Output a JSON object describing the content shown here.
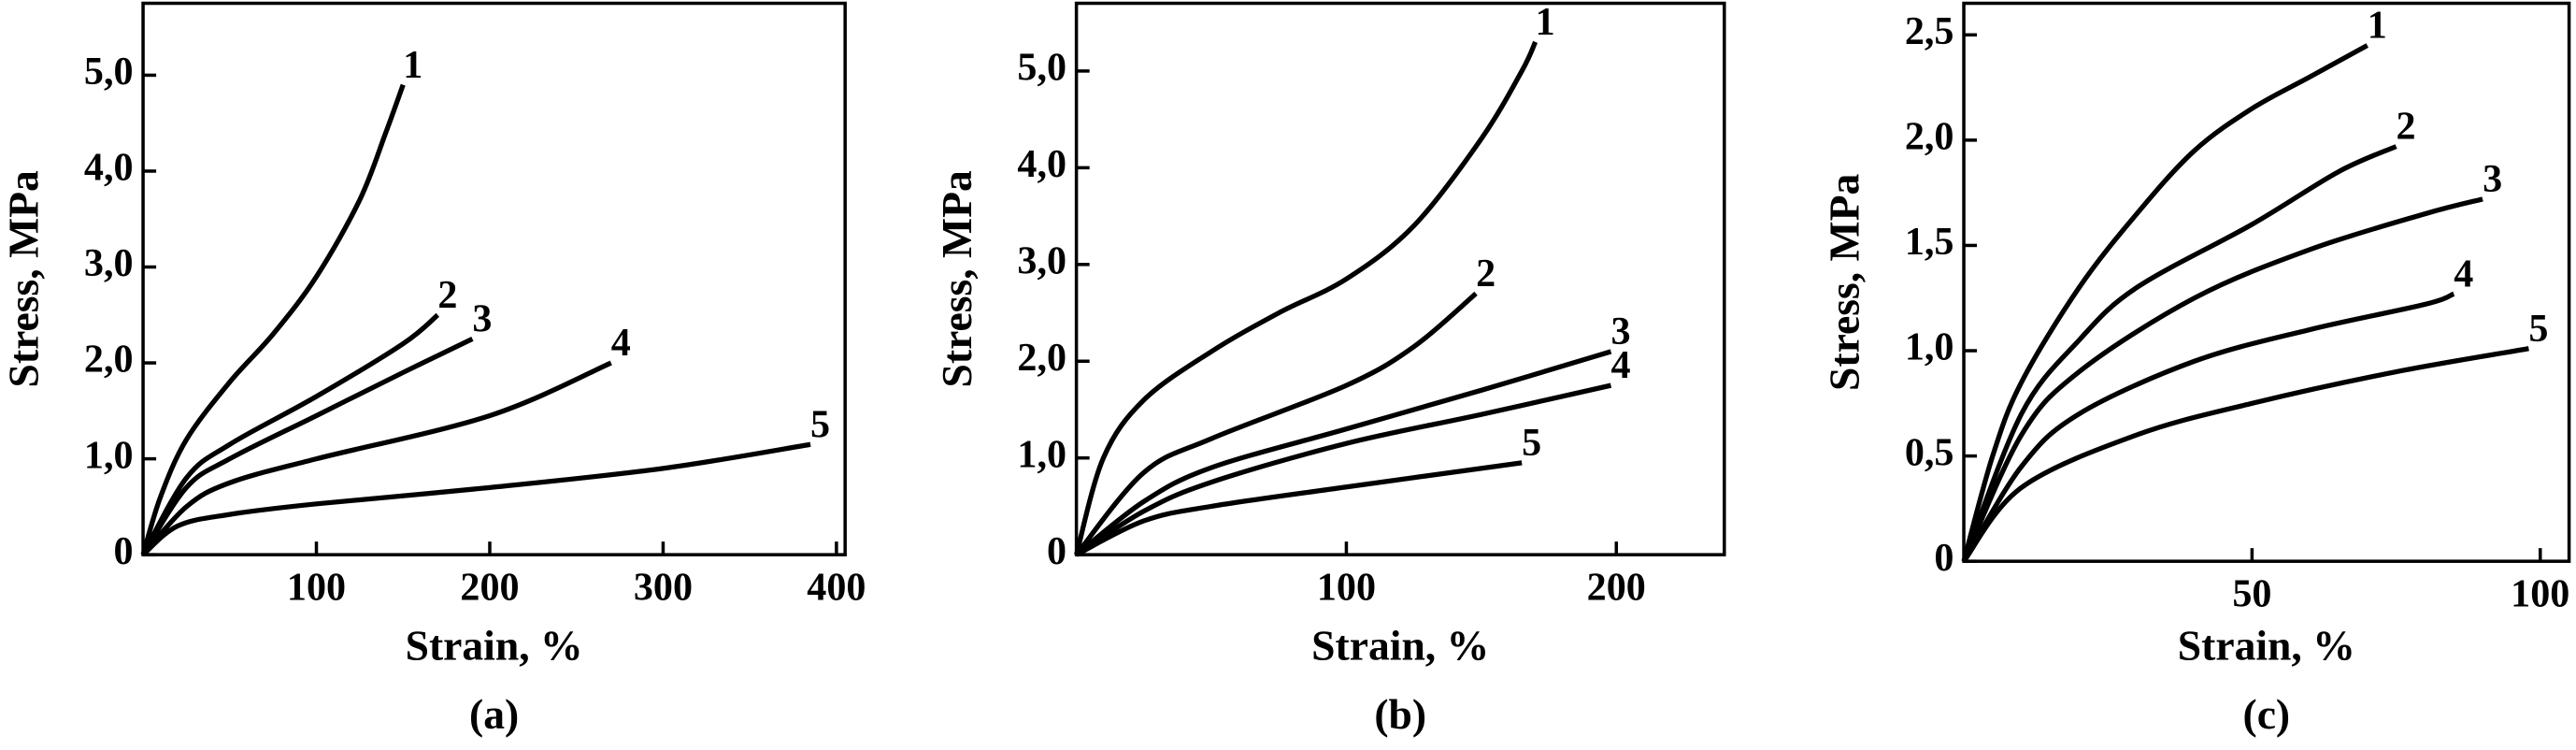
{
  "chart_data": [
    {
      "type": "line",
      "label": "(a)",
      "xlabel": "Strain, %",
      "ylabel": "Stress, MPa",
      "xlim": [
        0,
        405
      ],
      "ylim": [
        0,
        5.75
      ],
      "xticks": [
        100,
        200,
        300,
        400
      ],
      "yticks": [
        0,
        {
          "value": 1,
          "label": "1,0"
        },
        {
          "value": 2,
          "label": "2,0"
        },
        {
          "value": 3,
          "label": "3,0"
        },
        {
          "value": 4,
          "label": "4,0"
        },
        {
          "value": 5,
          "label": "5,0"
        }
      ],
      "series": [
        {
          "name": "1",
          "color": "#000000",
          "x": [
            0,
            10,
            25,
            50,
            75,
            100,
            125,
            140,
            150
          ],
          "values": [
            0,
            0.6,
            1.2,
            1.8,
            2.3,
            2.9,
            3.7,
            4.4,
            4.9
          ]
        },
        {
          "name": "2",
          "color": "#000000",
          "x": [
            0,
            25,
            50,
            100,
            150,
            170
          ],
          "values": [
            0,
            0.8,
            1.15,
            1.65,
            2.2,
            2.5
          ]
        },
        {
          "name": "3",
          "color": "#000000",
          "x": [
            0,
            25,
            50,
            100,
            150,
            190
          ],
          "values": [
            0,
            0.7,
            1.0,
            1.45,
            1.9,
            2.25
          ]
        },
        {
          "name": "4",
          "color": "#000000",
          "x": [
            0,
            25,
            50,
            100,
            200,
            270
          ],
          "values": [
            0,
            0.5,
            0.75,
            1.0,
            1.45,
            2.0
          ]
        },
        {
          "name": "5",
          "color": "#000000",
          "x": [
            0,
            20,
            50,
            100,
            200,
            300,
            385
          ],
          "values": [
            0,
            0.3,
            0.42,
            0.53,
            0.7,
            0.9,
            1.15
          ]
        }
      ]
    },
    {
      "type": "line",
      "label": "(b)",
      "xlabel": "Strain, %",
      "ylabel": "Stress, MPa",
      "xlim": [
        0,
        240
      ],
      "ylim": [
        0,
        5.7
      ],
      "xticks": [
        100,
        200
      ],
      "yticks": [
        0,
        {
          "value": 1,
          "label": "1,0"
        },
        {
          "value": 2,
          "label": "2,0"
        },
        {
          "value": 3,
          "label": "3,0"
        },
        {
          "value": 4,
          "label": "4,0"
        },
        {
          "value": 5,
          "label": "5,0"
        }
      ],
      "series": [
        {
          "name": "1",
          "color": "#000000",
          "x": [
            0,
            10,
            25,
            50,
            75,
            100,
            125,
            150,
            165,
            170
          ],
          "values": [
            0,
            1.0,
            1.6,
            2.1,
            2.5,
            2.85,
            3.4,
            4.3,
            5.0,
            5.3
          ]
        },
        {
          "name": "2",
          "color": "#000000",
          "x": [
            0,
            25,
            50,
            100,
            125,
            148
          ],
          "values": [
            0,
            0.85,
            1.2,
            1.75,
            2.15,
            2.7
          ]
        },
        {
          "name": "3",
          "color": "#000000",
          "x": [
            0,
            25,
            50,
            100,
            150,
            198
          ],
          "values": [
            0,
            0.55,
            0.9,
            1.3,
            1.7,
            2.1
          ]
        },
        {
          "name": "4",
          "color": "#000000",
          "x": [
            0,
            25,
            50,
            100,
            150,
            198
          ],
          "values": [
            0,
            0.45,
            0.75,
            1.15,
            1.45,
            1.75
          ]
        },
        {
          "name": "5",
          "color": "#000000",
          "x": [
            0,
            25,
            50,
            100,
            165
          ],
          "values": [
            0,
            0.35,
            0.5,
            0.7,
            0.95
          ]
        }
      ]
    },
    {
      "type": "line",
      "label": "(c)",
      "xlabel": "Strain, %",
      "ylabel": "Stress, MPa",
      "xlim": [
        0,
        105
      ],
      "ylim": [
        0,
        2.65
      ],
      "xticks": [
        50,
        100
      ],
      "yticks": [
        0,
        {
          "value": 0.5,
          "label": "0,5"
        },
        {
          "value": 1,
          "label": "1,0"
        },
        {
          "value": 1.5,
          "label": "1,5"
        },
        {
          "value": 2,
          "label": "2,0"
        },
        {
          "value": 2.5,
          "label": "2,5"
        }
      ],
      "series": [
        {
          "name": "1",
          "color": "#000000",
          "x": [
            0,
            5,
            10,
            20,
            30,
            40,
            50,
            60,
            70
          ],
          "values": [
            0,
            0.5,
            0.85,
            1.3,
            1.65,
            1.95,
            2.15,
            2.3,
            2.45
          ]
        },
        {
          "name": "2",
          "color": "#000000",
          "x": [
            0,
            10,
            20,
            30,
            50,
            65,
            75
          ],
          "values": [
            0,
            0.7,
            1.05,
            1.3,
            1.6,
            1.85,
            1.97
          ]
        },
        {
          "name": "3",
          "color": "#000000",
          "x": [
            0,
            10,
            20,
            40,
            60,
            80,
            90
          ],
          "values": [
            0,
            0.6,
            0.9,
            1.25,
            1.48,
            1.65,
            1.72
          ]
        },
        {
          "name": "4",
          "color": "#000000",
          "x": [
            0,
            10,
            20,
            40,
            60,
            80,
            85
          ],
          "values": [
            0,
            0.45,
            0.7,
            0.95,
            1.1,
            1.22,
            1.27
          ]
        },
        {
          "name": "5",
          "color": "#000000",
          "x": [
            0,
            10,
            30,
            50,
            75,
            98
          ],
          "values": [
            0,
            0.35,
            0.6,
            0.75,
            0.9,
            1.01
          ]
        }
      ]
    }
  ]
}
